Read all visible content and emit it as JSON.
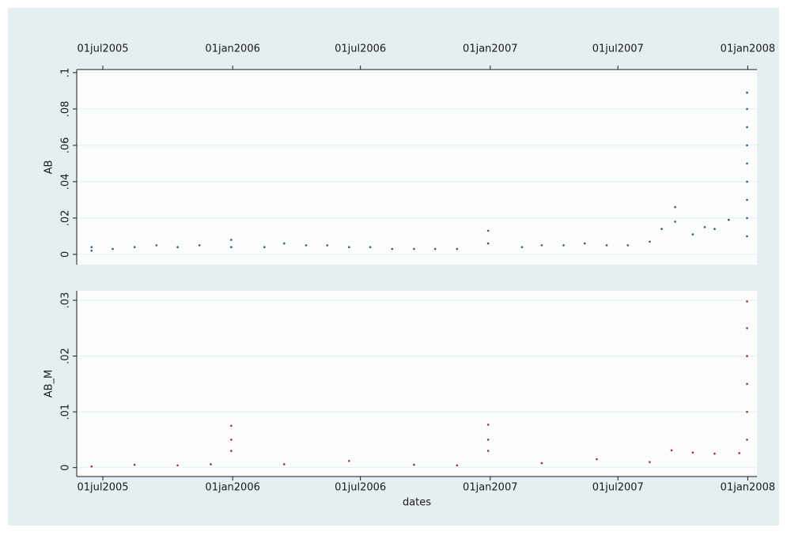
{
  "chart_data": [
    {
      "type": "scatter",
      "y_label": "AB",
      "xlim": [
        "2005-05-25",
        "2008-01-14"
      ],
      "xticks": [
        {
          "value": "2005-07-01",
          "label": "01jul2005"
        },
        {
          "value": "2006-01-01",
          "label": "01jan2006"
        },
        {
          "value": "2006-07-01",
          "label": "01jul2006"
        },
        {
          "value": "2007-01-01",
          "label": "01jan2007"
        },
        {
          "value": "2007-07-01",
          "label": "01jul2007"
        },
        {
          "value": "2008-01-01",
          "label": "01jan2008"
        }
      ],
      "xaxis_position": "top",
      "ylim": [
        -0.0057,
        0.1017
      ],
      "yticks": [
        0,
        {
          "value": 0.02,
          "label": ".02"
        },
        {
          "value": 0.04,
          "label": ".04"
        },
        {
          "value": 0.06,
          "label": ".06"
        },
        {
          "value": 0.08,
          "label": ".08"
        },
        {
          "value": 0.1,
          "label": ".1"
        }
      ],
      "grid": true,
      "series": [
        {
          "color": "#2b5b88",
          "x": [
            "2005-06-15",
            "2005-06-15",
            "2005-07-15",
            "2005-08-15",
            "2005-09-15",
            "2005-10-15",
            "2005-11-15",
            "2005-12-30",
            "2005-12-30",
            "2006-02-15",
            "2006-03-15",
            "2006-04-15",
            "2006-05-15",
            "2006-06-15",
            "2006-07-15",
            "2006-08-15",
            "2006-09-15",
            "2006-10-15",
            "2006-11-15",
            "2006-12-29",
            "2006-12-29",
            "2007-02-15",
            "2007-03-15",
            "2007-04-15",
            "2007-05-15",
            "2007-06-15",
            "2007-07-15",
            "2007-08-15",
            "2007-09-01",
            "2007-09-20",
            "2007-09-20",
            "2007-10-15",
            "2007-11-01",
            "2007-11-15",
            "2007-12-05",
            "2007-12-31",
            "2007-12-31",
            "2007-12-31",
            "2007-12-31",
            "2007-12-31",
            "2007-12-31",
            "2007-12-31",
            "2007-12-31",
            "2007-12-31"
          ],
          "values": [
            0.004,
            0.002,
            0.003,
            0.004,
            0.005,
            0.004,
            0.005,
            0.008,
            0.004,
            0.004,
            0.006,
            0.005,
            0.005,
            0.004,
            0.004,
            0.003,
            0.003,
            0.003,
            0.003,
            0.013,
            0.006,
            0.004,
            0.005,
            0.005,
            0.006,
            0.005,
            0.005,
            0.007,
            0.014,
            0.026,
            0.018,
            0.011,
            0.015,
            0.014,
            0.019,
            0.089,
            0.08,
            0.07,
            0.06,
            0.05,
            0.04,
            0.03,
            0.02,
            0.01
          ]
        }
      ]
    },
    {
      "type": "scatter",
      "y_label": "AB_M",
      "x_label": "dates",
      "xlim": [
        "2005-05-25",
        "2008-01-14"
      ],
      "xticks": [
        {
          "value": "2005-07-01",
          "label": "01jul2005"
        },
        {
          "value": "2006-01-01",
          "label": "01jan2006"
        },
        {
          "value": "2006-07-01",
          "label": "01jul2006"
        },
        {
          "value": "2007-01-01",
          "label": "01jan2007"
        },
        {
          "value": "2007-07-01",
          "label": "01jul2007"
        },
        {
          "value": "2008-01-01",
          "label": "01jan2008"
        }
      ],
      "xaxis_position": "bottom",
      "ylim": [
        -0.0016,
        0.0317
      ],
      "yticks": [
        0,
        {
          "value": 0.01,
          "label": ".01"
        },
        {
          "value": 0.02,
          "label": ".02"
        },
        {
          "value": 0.03,
          "label": ".03"
        }
      ],
      "grid": true,
      "series": [
        {
          "color": "#9b2f2f",
          "x": [
            "2005-06-15",
            "2005-08-15",
            "2005-10-15",
            "2005-12-01",
            "2005-12-30",
            "2005-12-30",
            "2005-12-30",
            "2006-03-15",
            "2006-06-15",
            "2006-09-15",
            "2006-11-15",
            "2006-12-29",
            "2006-12-29",
            "2006-12-29",
            "2007-03-15",
            "2007-06-01",
            "2007-08-15",
            "2007-09-15",
            "2007-10-15",
            "2007-11-15",
            "2007-12-20",
            "2007-12-31",
            "2007-12-31",
            "2007-12-31",
            "2007-12-31",
            "2007-12-31",
            "2007-12-31"
          ],
          "values": [
            0.0002,
            0.0005,
            0.0004,
            0.0006,
            0.0075,
            0.005,
            0.003,
            0.0006,
            0.0012,
            0.0005,
            0.0004,
            0.0077,
            0.005,
            0.003,
            0.0008,
            0.0015,
            0.001,
            0.0031,
            0.0027,
            0.0025,
            0.0026,
            0.0298,
            0.025,
            0.02,
            0.015,
            0.01,
            0.005
          ]
        }
      ]
    }
  ]
}
